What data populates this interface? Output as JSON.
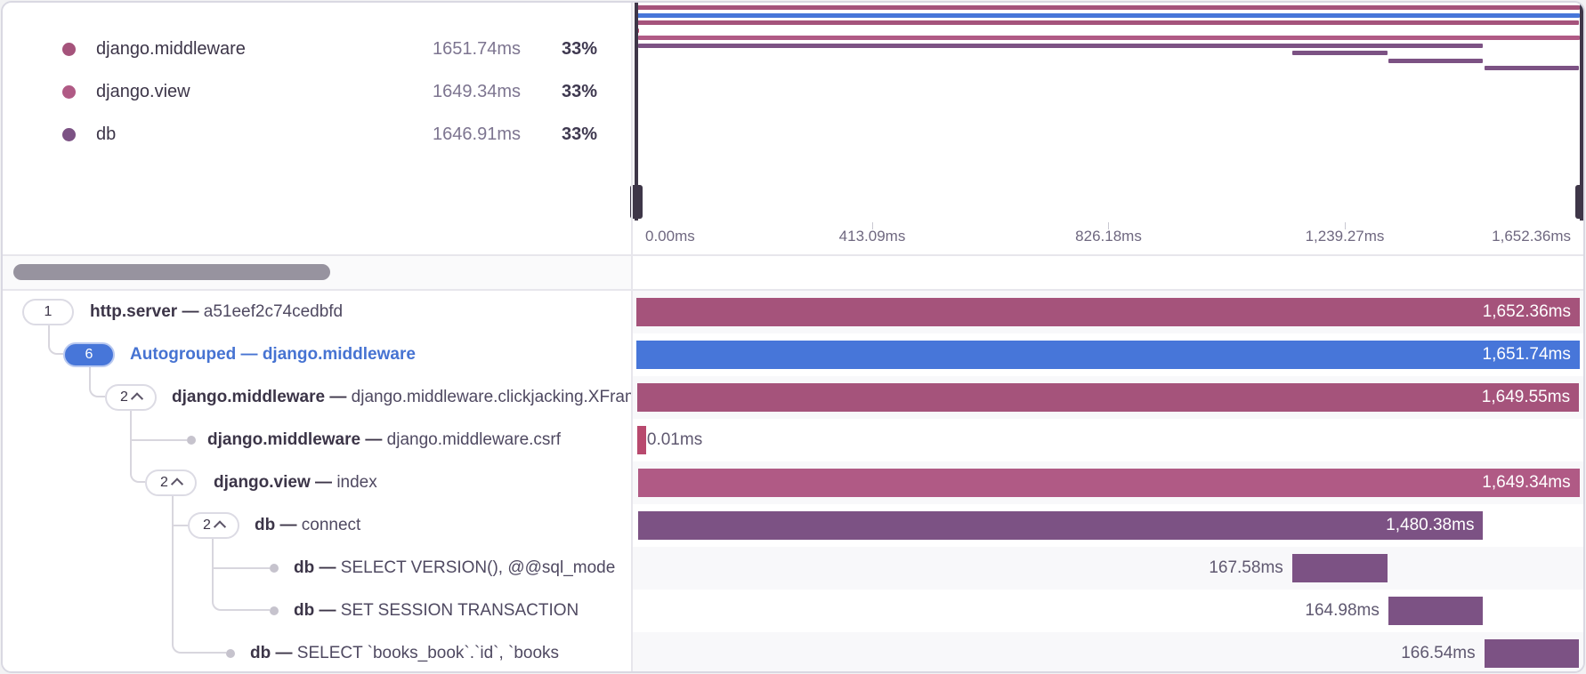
{
  "colors": {
    "maroon": "#a5537b",
    "pink": "#b05a85",
    "purple": "#7c5284",
    "blue": "#4776d9",
    "red": "#b8496e"
  },
  "legend": {
    "items": [
      {
        "name": "django.middleware",
        "value": "1651.74ms",
        "pct": "33%",
        "color": "maroon"
      },
      {
        "name": "django.view",
        "value": "1649.34ms",
        "pct": "33%",
        "color": "pink"
      },
      {
        "name": "db",
        "value": "1646.91ms",
        "pct": "33%",
        "color": "purple"
      }
    ]
  },
  "minimap": {
    "axis_labels": [
      "0.00ms",
      "413.09ms",
      "826.18ms",
      "1,239.27ms",
      "1,652.36ms"
    ],
    "total_ms": 1652.36
  },
  "rows": [
    {
      "badge": "1",
      "badge_style": "default",
      "chevron": false,
      "op": "http.server",
      "sep": "—",
      "desc": "a51eef2c74cedbfd",
      "duration_label": "1,652.36ms",
      "start_ms": 0,
      "duration_ms": 1652.36,
      "color": "maroon",
      "label_placement": "inside"
    },
    {
      "badge": "6",
      "badge_style": "blue",
      "chevron": false,
      "op": "Autogrouped",
      "sep": "—",
      "desc": "django.middleware",
      "duration_label": "1,651.74ms",
      "start_ms": 0.4,
      "duration_ms": 1651.74,
      "color": "blue",
      "label_placement": "inside",
      "text_style": "blue"
    },
    {
      "badge": "2",
      "badge_style": "default",
      "chevron": true,
      "op": "django.middleware",
      "sep": "—",
      "desc": "django.middleware.clickjacking.XFrame",
      "duration_label": "1,649.55ms",
      "start_ms": 1.4,
      "duration_ms": 1649.55,
      "color": "maroon",
      "label_placement": "inside"
    },
    {
      "badge": null,
      "dot": true,
      "chevron": false,
      "op": "django.middleware",
      "sep": "—",
      "desc": "django.middleware.csrf",
      "duration_label": "0.01ms",
      "start_ms": 1.4,
      "duration_ms": 0.01,
      "color": "red",
      "label_placement": "right"
    },
    {
      "badge": "2",
      "badge_style": "default",
      "chevron": true,
      "op": "django.view",
      "sep": "—",
      "desc": "index",
      "duration_label": "1,649.34ms",
      "start_ms": 2.4,
      "duration_ms": 1649.34,
      "color": "pink",
      "label_placement": "inside"
    },
    {
      "badge": "2",
      "badge_style": "default",
      "chevron": true,
      "op": "db",
      "sep": "—",
      "desc": "connect",
      "duration_label": "1,480.38ms",
      "start_ms": 2.8,
      "duration_ms": 1480.38,
      "color": "purple",
      "label_placement": "inside"
    },
    {
      "badge": null,
      "dot": true,
      "chevron": false,
      "op": "db",
      "sep": "—",
      "desc": "SELECT VERSION(), @@sql_mode",
      "duration_label": "167.58ms",
      "start_ms": 1148.5,
      "duration_ms": 167.58,
      "color": "purple",
      "label_placement": "left"
    },
    {
      "badge": null,
      "dot": true,
      "chevron": false,
      "op": "db",
      "sep": "—",
      "desc": "SET SESSION TRANSACTION",
      "duration_label": "164.98ms",
      "start_ms": 1317.0,
      "duration_ms": 164.98,
      "color": "purple",
      "label_placement": "left"
    },
    {
      "badge": null,
      "dot": true,
      "chevron": false,
      "op": "db",
      "sep": "—",
      "desc": "SELECT `books_book`.`id`, `books",
      "duration_label": "166.54ms",
      "start_ms": 1485.0,
      "duration_ms": 166.54,
      "color": "purple",
      "label_placement": "left"
    }
  ]
}
